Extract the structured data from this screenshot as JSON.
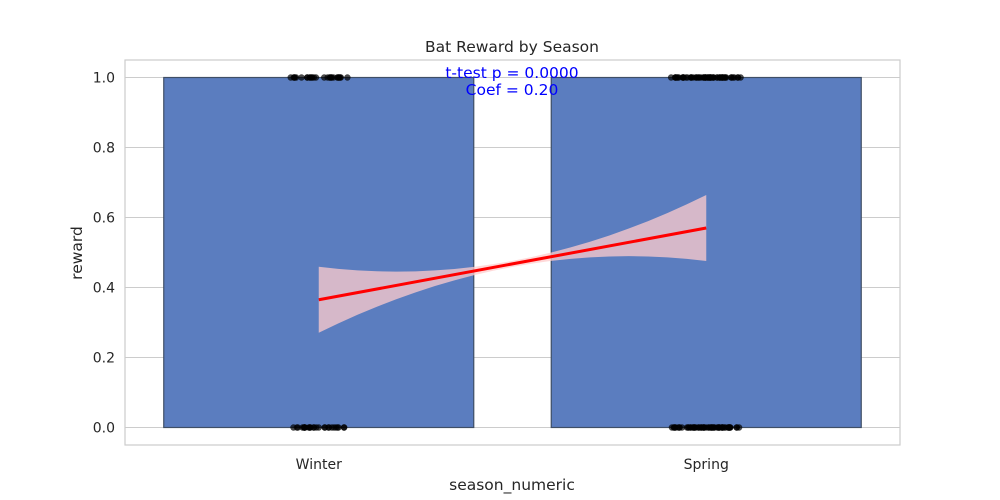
{
  "chart_data": {
    "type": "bar",
    "title": "Bat Reward by Season",
    "xlabel": "season_numeric",
    "ylabel": "reward",
    "categories": [
      "Winter",
      "Spring"
    ],
    "values": [
      1.0,
      1.0
    ],
    "ylim": [
      -0.05,
      1.05
    ],
    "yticks": [
      0.0,
      0.2,
      0.4,
      0.6,
      0.8,
      1.0
    ],
    "ytick_labels": [
      "0.0",
      "0.2",
      "0.4",
      "0.6",
      "0.8",
      "1.0"
    ],
    "grid": true,
    "regression_line": {
      "x": [
        0,
        1
      ],
      "y": [
        0.365,
        0.57
      ],
      "color": "#ff0000",
      "ci_color": "#ffcccc"
    },
    "points": {
      "Winter": {
        "y_values": [
          0,
          1
        ]
      },
      "Spring": {
        "y_values": [
          0,
          1
        ]
      }
    },
    "annotations": [
      "t-test p = 0.0000",
      "Coef = 0.20"
    ],
    "colors": {
      "bar": "#5b7dbf",
      "bar_edge": "#3f4f66",
      "annotation": "#0000ff",
      "points": "#000000"
    }
  }
}
